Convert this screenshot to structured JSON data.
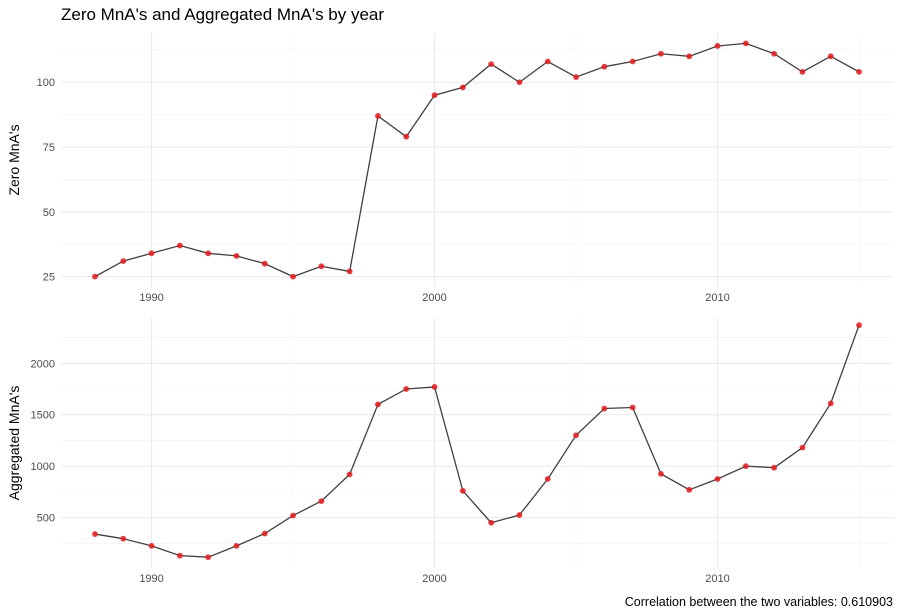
{
  "chart_data": {
    "type": "line",
    "title": "Zero MnA's and Aggregated MnA's by year",
    "caption": "Correlation between the two variables: 0.610903",
    "line_color": "#404040",
    "point_color": "#e41a1c",
    "x": [
      1988,
      1989,
      1990,
      1991,
      1992,
      1993,
      1994,
      1995,
      1996,
      1997,
      1998,
      1999,
      2000,
      2001,
      2002,
      2003,
      2004,
      2005,
      2006,
      2007,
      2008,
      2009,
      2010,
      2011,
      2012,
      2013,
      2014,
      2015
    ],
    "xlim": [
      1986.8,
      2016.2
    ],
    "xticks": [
      1990,
      2000,
      2010
    ],
    "grid": true,
    "panels": [
      {
        "ylabel": "Zero MnA's",
        "ylim": [
          21,
          119
        ],
        "yticks": [
          25,
          50,
          75,
          100
        ],
        "values": [
          25,
          31,
          34,
          37,
          34,
          33,
          30,
          25,
          29,
          27,
          87,
          79,
          95,
          98,
          107,
          100,
          108,
          102,
          106,
          108,
          111,
          110,
          114,
          115,
          111,
          104,
          110,
          104
        ]
      },
      {
        "ylabel": "Aggregated MnA's",
        "ylim": [
          10,
          2440
        ],
        "yticks": [
          500,
          1000,
          1500,
          2000
        ],
        "values": [
          340,
          295,
          225,
          130,
          115,
          225,
          345,
          520,
          660,
          920,
          1600,
          1750,
          1770,
          760,
          450,
          525,
          875,
          1300,
          1560,
          1570,
          925,
          770,
          875,
          1000,
          985,
          1180,
          1610,
          2370
        ]
      }
    ]
  }
}
